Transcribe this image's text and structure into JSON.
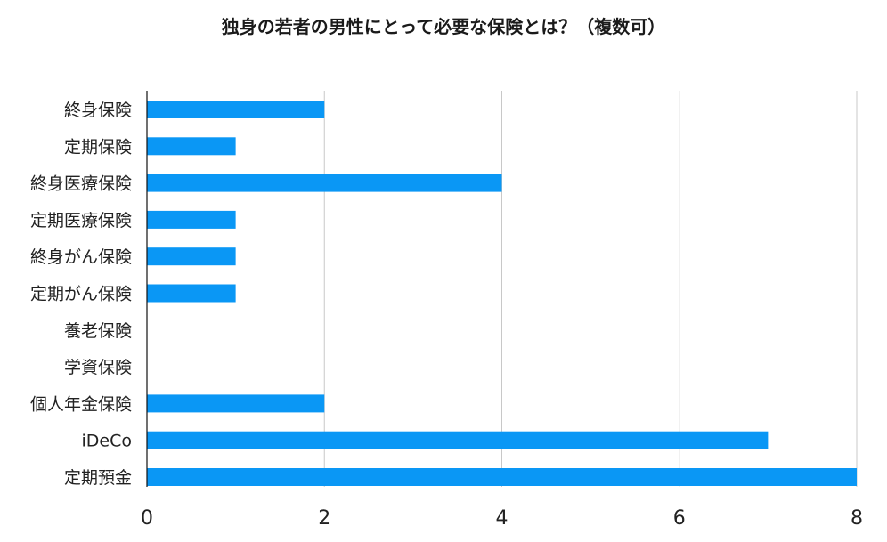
{
  "chart_data": {
    "type": "bar",
    "orientation": "horizontal",
    "title": "独身の若者の男性にとって必要な保険とは？（複数可）",
    "categories": [
      "終身保険",
      "定期保険",
      "終身医療保険",
      "定期医療保険",
      "終身がん保険",
      "定期がん保険",
      "養老保険",
      "学資保険",
      "個人年金保険",
      "iDeCo",
      "定期預金"
    ],
    "values": [
      2,
      1,
      4,
      1,
      1,
      1,
      0,
      0,
      2,
      7,
      8
    ],
    "xlim": [
      0,
      8
    ],
    "xticks": [
      0,
      2,
      4,
      6,
      8
    ],
    "grid": true,
    "legend": "none",
    "bar_color": "#0a97f5",
    "grid_color": "#c8c8c8",
    "axis_color": "#111111"
  }
}
